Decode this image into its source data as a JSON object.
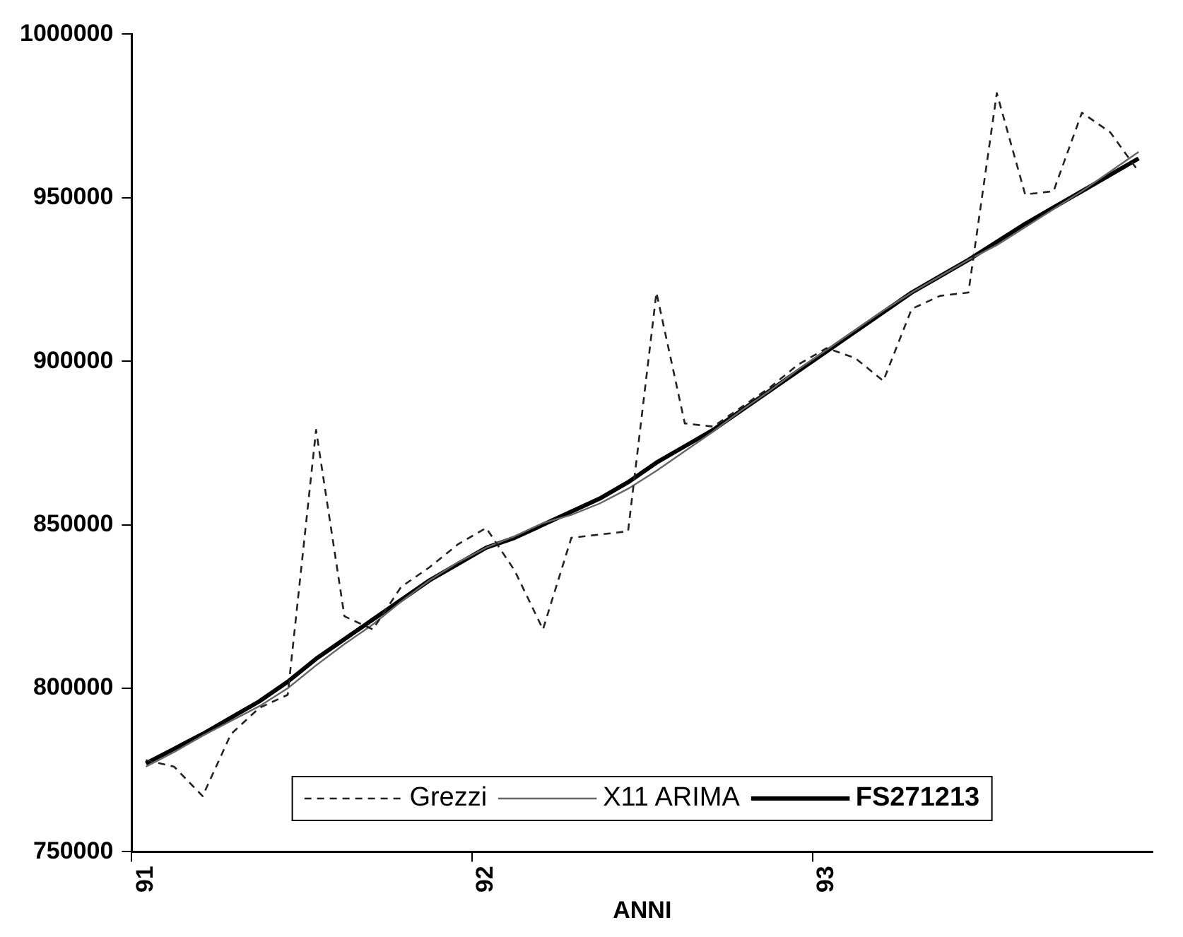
{
  "chart_data": {
    "type": "line",
    "xlabel": "ANNI",
    "categories": [
      "91",
      null,
      null,
      null,
      null,
      null,
      null,
      null,
      null,
      null,
      null,
      null,
      "92",
      null,
      null,
      null,
      null,
      null,
      null,
      null,
      null,
      null,
      null,
      null,
      "93",
      null,
      null,
      null,
      null,
      null,
      null,
      null,
      null,
      null,
      null,
      null
    ],
    "series": [
      {
        "name": "Grezzi",
        "color": "#222222",
        "line_style": "dashed",
        "values": [
          778000,
          776000,
          767000,
          786000,
          794000,
          798000,
          879000,
          822000,
          818000,
          831000,
          837000,
          844000,
          849000,
          836000,
          818000,
          846000,
          847000,
          848000,
          921000,
          881000,
          880000,
          886000,
          892000,
          899000,
          904000,
          901000,
          894000,
          916000,
          920000,
          921000,
          982000,
          951000,
          952000,
          976000,
          970000,
          958000
        ]
      },
      {
        "name": "X11 ARIMA",
        "color": "#666666",
        "line_style": "solid",
        "values": [
          776000,
          780500,
          785500,
          790000,
          794500,
          800000,
          807000,
          813500,
          819500,
          826500,
          833000,
          838500,
          843000,
          846500,
          850500,
          853000,
          856500,
          861000,
          866500,
          872500,
          878500,
          885000,
          891000,
          897500,
          903500,
          909500,
          915500,
          921000,
          926000,
          931000,
          935500,
          941000,
          946500,
          952000,
          958000,
          964000
        ]
      },
      {
        "name": "FS271213",
        "color": "#000000",
        "line_style": "solid",
        "values": [
          777000,
          781500,
          786000,
          791000,
          796000,
          802000,
          809000,
          815000,
          821000,
          827000,
          833000,
          838000,
          843000,
          846000,
          850000,
          854000,
          858000,
          863000,
          869000,
          874000,
          879000,
          885000,
          891000,
          897000,
          903000,
          909000,
          915000,
          921000,
          926000,
          931000,
          936500,
          942000,
          947000,
          952000,
          957000,
          962000
        ]
      }
    ],
    "ylim": [
      750000,
      1000000
    ],
    "yticks": [
      750000,
      800000,
      850000,
      900000,
      950000,
      1000000
    ],
    "grid": false,
    "legend": "bottom",
    "marker": "none"
  }
}
